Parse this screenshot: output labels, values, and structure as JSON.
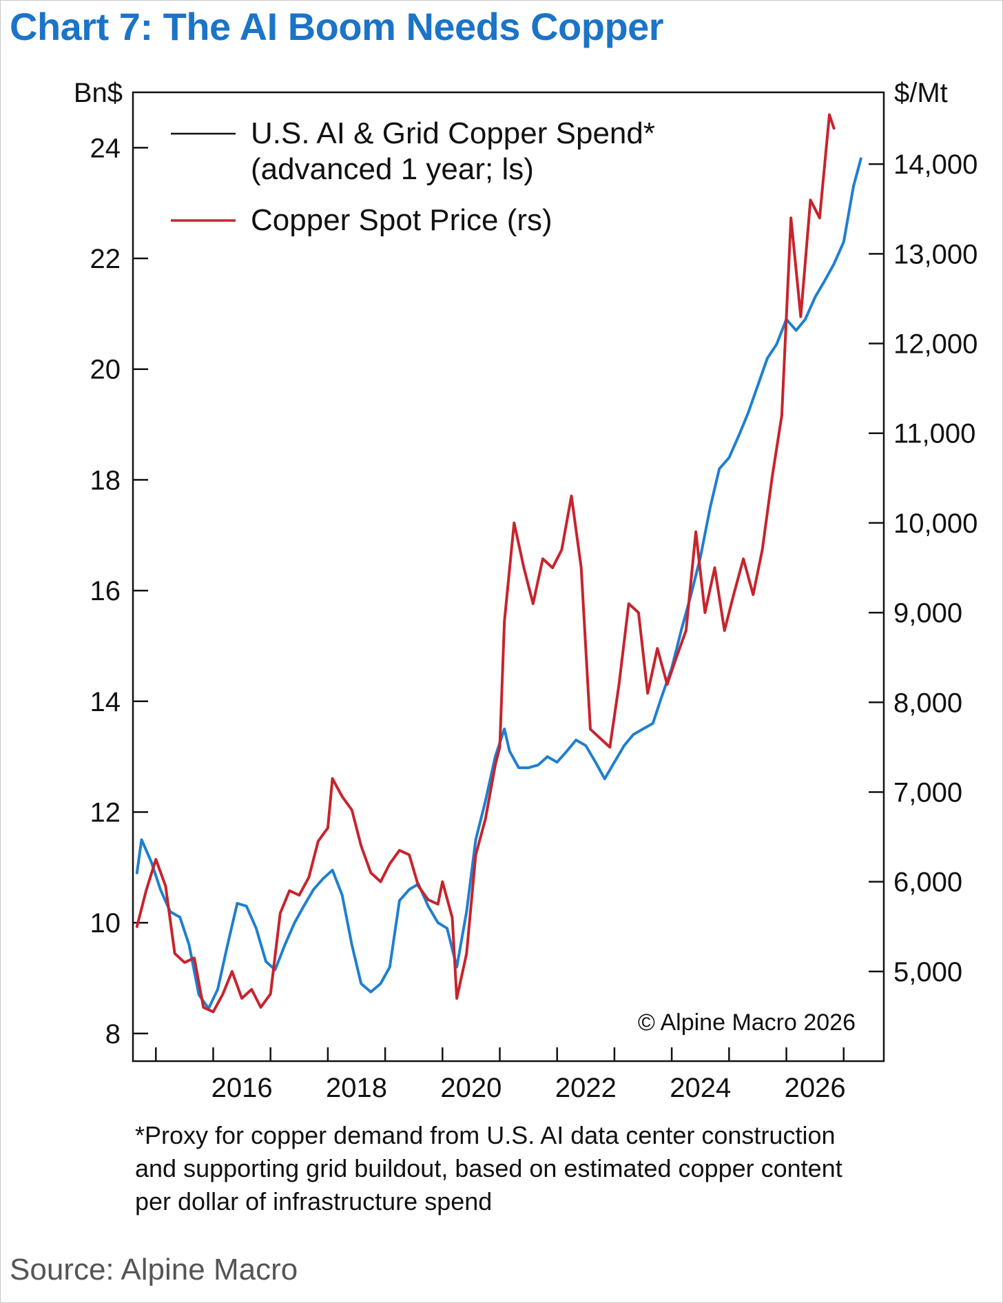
{
  "title": "Chart 7: The AI Boom Needs Copper",
  "source": "Source: Alpine Macro",
  "footnote": [
    "*Proxy for copper demand from U.S. AI data center construction",
    "and supporting grid buildout, based on estimated copper content",
    "per dollar of infrastructure spend"
  ],
  "copyright": "© Alpine Macro 2026",
  "colors": {
    "title": "#1b74c7",
    "spend_line": "#1f7fd0",
    "price_line": "#c8232c",
    "legend_spend_swatch": "#111111"
  },
  "chart_data": {
    "type": "line",
    "x_axis": {
      "ticks": [
        2016,
        2018,
        2020,
        2022,
        2024,
        2026
      ],
      "range": [
        2014.6,
        2027.7
      ]
    },
    "y_left": {
      "unit_label": "Bn$",
      "ticks": [
        8,
        10,
        12,
        14,
        16,
        18,
        20,
        22,
        24
      ],
      "range": [
        7.5,
        25.0
      ]
    },
    "y_right": {
      "unit_label": "$/Mt",
      "ticks": [
        5000,
        6000,
        7000,
        8000,
        9000,
        10000,
        11000,
        12000,
        13000,
        14000
      ],
      "tick_labels": [
        "5,000",
        "6,000",
        "7,000",
        "8,000",
        "9,000",
        "10,000",
        "11,000",
        "12,000",
        "13,000",
        "14,000"
      ],
      "range": [
        4000,
        14800
      ]
    },
    "legend": {
      "position": "top-left",
      "entries": [
        "U.S. AI & Grid Copper Spend*",
        "(advanced 1 year; ls)",
        "Copper Spot Price (rs)"
      ]
    },
    "grid": false,
    "series": [
      {
        "name": "U.S. AI & Grid Copper Spend*",
        "axis": "left",
        "points": [
          [
            2014.67,
            10.9
          ],
          [
            2014.75,
            11.5
          ],
          [
            2014.92,
            11.1
          ],
          [
            2015.08,
            10.6
          ],
          [
            2015.25,
            10.2
          ],
          [
            2015.42,
            10.1
          ],
          [
            2015.58,
            9.6
          ],
          [
            2015.75,
            8.7
          ],
          [
            2015.92,
            8.45
          ],
          [
            2016.08,
            8.8
          ],
          [
            2016.25,
            9.6
          ],
          [
            2016.42,
            10.35
          ],
          [
            2016.58,
            10.3
          ],
          [
            2016.75,
            9.9
          ],
          [
            2016.92,
            9.3
          ],
          [
            2017.08,
            9.15
          ],
          [
            2017.25,
            9.6
          ],
          [
            2017.42,
            10.0
          ],
          [
            2017.58,
            10.3
          ],
          [
            2017.75,
            10.6
          ],
          [
            2017.92,
            10.8
          ],
          [
            2018.08,
            10.95
          ],
          [
            2018.25,
            10.5
          ],
          [
            2018.42,
            9.6
          ],
          [
            2018.58,
            8.9
          ],
          [
            2018.75,
            8.75
          ],
          [
            2018.92,
            8.9
          ],
          [
            2019.08,
            9.2
          ],
          [
            2019.25,
            10.4
          ],
          [
            2019.42,
            10.6
          ],
          [
            2019.58,
            10.7
          ],
          [
            2019.75,
            10.3
          ],
          [
            2019.92,
            10.0
          ],
          [
            2020.08,
            9.9
          ],
          [
            2020.25,
            9.2
          ],
          [
            2020.42,
            10.2
          ],
          [
            2020.58,
            11.5
          ],
          [
            2020.75,
            12.2
          ],
          [
            2020.92,
            13.0
          ],
          [
            2021.08,
            13.5
          ],
          [
            2021.17,
            13.1
          ],
          [
            2021.33,
            12.8
          ],
          [
            2021.5,
            12.8
          ],
          [
            2021.67,
            12.85
          ],
          [
            2021.83,
            13.0
          ],
          [
            2022.0,
            12.9
          ],
          [
            2022.17,
            13.1
          ],
          [
            2022.33,
            13.3
          ],
          [
            2022.5,
            13.2
          ],
          [
            2022.67,
            12.9
          ],
          [
            2022.83,
            12.6
          ],
          [
            2023.0,
            12.9
          ],
          [
            2023.17,
            13.2
          ],
          [
            2023.33,
            13.4
          ],
          [
            2023.5,
            13.5
          ],
          [
            2023.67,
            13.6
          ],
          [
            2023.83,
            14.1
          ],
          [
            2024.0,
            14.6
          ],
          [
            2024.17,
            15.3
          ],
          [
            2024.33,
            15.9
          ],
          [
            2024.5,
            16.6
          ],
          [
            2024.67,
            17.5
          ],
          [
            2024.83,
            18.2
          ],
          [
            2025.0,
            18.4
          ],
          [
            2025.17,
            18.8
          ],
          [
            2025.33,
            19.2
          ],
          [
            2025.5,
            19.7
          ],
          [
            2025.67,
            20.2
          ],
          [
            2025.83,
            20.45
          ],
          [
            2026.0,
            20.9
          ],
          [
            2026.17,
            20.7
          ],
          [
            2026.33,
            20.9
          ],
          [
            2026.5,
            21.3
          ],
          [
            2026.67,
            21.6
          ],
          [
            2026.83,
            21.9
          ],
          [
            2027.0,
            22.3
          ],
          [
            2027.17,
            23.3
          ],
          [
            2027.3,
            23.8
          ]
        ]
      },
      {
        "name": "Copper Spot Price (rs)",
        "axis": "right",
        "points": [
          [
            2014.67,
            5500
          ],
          [
            2014.83,
            5900
          ],
          [
            2015.0,
            6250
          ],
          [
            2015.17,
            5950
          ],
          [
            2015.33,
            5200
          ],
          [
            2015.5,
            5100
          ],
          [
            2015.67,
            5150
          ],
          [
            2015.83,
            4600
          ],
          [
            2016.0,
            4550
          ],
          [
            2016.17,
            4750
          ],
          [
            2016.33,
            5000
          ],
          [
            2016.5,
            4700
          ],
          [
            2016.67,
            4800
          ],
          [
            2016.83,
            4600
          ],
          [
            2017.0,
            4750
          ],
          [
            2017.17,
            5650
          ],
          [
            2017.33,
            5900
          ],
          [
            2017.5,
            5850
          ],
          [
            2017.67,
            6050
          ],
          [
            2017.83,
            6450
          ],
          [
            2018.0,
            6600
          ],
          [
            2018.08,
            7150
          ],
          [
            2018.25,
            6950
          ],
          [
            2018.42,
            6800
          ],
          [
            2018.58,
            6400
          ],
          [
            2018.75,
            6100
          ],
          [
            2018.92,
            6000
          ],
          [
            2019.08,
            6200
          ],
          [
            2019.25,
            6350
          ],
          [
            2019.42,
            6300
          ],
          [
            2019.58,
            5950
          ],
          [
            2019.75,
            5800
          ],
          [
            2019.92,
            5750
          ],
          [
            2020.0,
            6000
          ],
          [
            2020.17,
            5600
          ],
          [
            2020.25,
            4700
          ],
          [
            2020.42,
            5200
          ],
          [
            2020.58,
            6300
          ],
          [
            2020.75,
            6700
          ],
          [
            2020.92,
            7300
          ],
          [
            2021.0,
            7500
          ],
          [
            2021.08,
            8900
          ],
          [
            2021.25,
            10000
          ],
          [
            2021.42,
            9500
          ],
          [
            2021.58,
            9100
          ],
          [
            2021.75,
            9600
          ],
          [
            2021.92,
            9500
          ],
          [
            2022.08,
            9700
          ],
          [
            2022.25,
            10300
          ],
          [
            2022.42,
            9500
          ],
          [
            2022.58,
            7700
          ],
          [
            2022.75,
            7600
          ],
          [
            2022.92,
            7500
          ],
          [
            2023.08,
            8200
          ],
          [
            2023.25,
            9100
          ],
          [
            2023.42,
            9000
          ],
          [
            2023.58,
            8100
          ],
          [
            2023.75,
            8600
          ],
          [
            2023.92,
            8200
          ],
          [
            2024.08,
            8500
          ],
          [
            2024.25,
            8800
          ],
          [
            2024.42,
            9900
          ],
          [
            2024.58,
            9000
          ],
          [
            2024.75,
            9500
          ],
          [
            2024.92,
            8800
          ],
          [
            2025.08,
            9200
          ],
          [
            2025.25,
            9600
          ],
          [
            2025.42,
            9200
          ],
          [
            2025.58,
            9700
          ],
          [
            2025.75,
            10500
          ],
          [
            2025.92,
            11200
          ],
          [
            2026.08,
            13400
          ],
          [
            2026.25,
            12300
          ],
          [
            2026.42,
            13600
          ],
          [
            2026.58,
            13400
          ],
          [
            2026.75,
            14550
          ],
          [
            2026.83,
            14400
          ]
        ]
      }
    ]
  }
}
